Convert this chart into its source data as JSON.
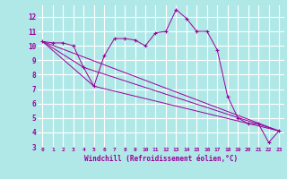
{
  "xlabel": "Windchill (Refroidissement éolien,°C)",
  "background_color": "#b0e8e8",
  "grid_color": "#ffffff",
  "line_color": "#990099",
  "xlim": [
    -0.5,
    23.5
  ],
  "ylim": [
    3,
    12.8
  ],
  "yticks": [
    3,
    4,
    5,
    6,
    7,
    8,
    9,
    10,
    11,
    12
  ],
  "xticks": [
    0,
    1,
    2,
    3,
    4,
    5,
    6,
    7,
    8,
    9,
    10,
    11,
    12,
    13,
    14,
    15,
    16,
    17,
    18,
    19,
    20,
    21,
    22,
    23
  ],
  "series1_x": [
    0,
    1,
    2,
    3,
    4,
    5,
    6,
    7,
    8,
    9,
    10,
    11,
    12,
    13,
    14,
    15,
    16,
    17,
    18,
    19,
    20,
    21,
    22,
    23
  ],
  "series1_y": [
    10.3,
    10.2,
    10.2,
    10.0,
    8.5,
    7.2,
    9.3,
    10.5,
    10.5,
    10.4,
    10.0,
    10.9,
    11.0,
    12.5,
    11.9,
    11.0,
    11.0,
    9.7,
    6.5,
    5.0,
    4.6,
    4.6,
    3.3,
    4.1
  ],
  "series2_x": [
    0,
    23
  ],
  "series2_y": [
    10.3,
    4.1
  ],
  "series3_x": [
    0,
    4,
    23
  ],
  "series3_y": [
    10.3,
    8.5,
    4.1
  ],
  "series4_x": [
    0,
    5,
    23
  ],
  "series4_y": [
    10.3,
    7.2,
    4.1
  ]
}
